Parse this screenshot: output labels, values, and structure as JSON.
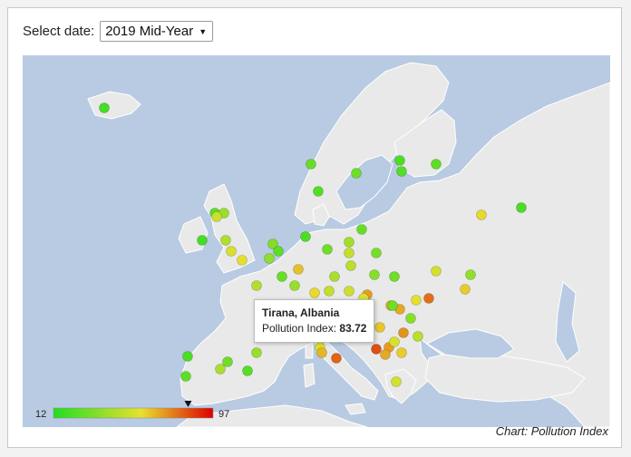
{
  "controls": {
    "date_label": "Select date:",
    "date_value": "2019 Mid-Year"
  },
  "tooltip": {
    "city": "Tirana, Albania",
    "metric_label": "Pollution Index:",
    "value": "83.72"
  },
  "legend": {
    "min_label": "12",
    "max_label": "97",
    "min": 12,
    "max": 97,
    "marker_value": 83.72
  },
  "caption": "Chart: Pollution Index",
  "colors": {
    "sea": "#b8cbe2",
    "land": "#e9e9e9",
    "low": "#22dd22",
    "mid": "#e8e030",
    "high": "#dd0000",
    "border": "#ffffff"
  },
  "map_data": {
    "region": "Europe",
    "cities": [
      {
        "v": 20
      },
      {
        "v": 28
      },
      {
        "v": 30
      },
      {
        "v": 22
      },
      {
        "v": 24
      },
      {
        "v": 26
      },
      {
        "v": 21
      },
      {
        "v": 60
      },
      {
        "v": 23
      },
      {
        "v": 25
      },
      {
        "v": 40
      },
      {
        "v": 52
      },
      {
        "v": 20
      },
      {
        "v": 45
      },
      {
        "v": 55
      },
      {
        "v": 58
      },
      {
        "v": 35
      },
      {
        "v": 26
      },
      {
        "v": 38
      },
      {
        "v": 22
      },
      {
        "v": 30
      },
      {
        "v": 42
      },
      {
        "v": 28
      },
      {
        "v": 32
      },
      {
        "v": 50
      },
      {
        "v": 48
      },
      {
        "v": 36
      },
      {
        "v": 30
      },
      {
        "v": 54
      },
      {
        "v": 38
      },
      {
        "v": 62
      },
      {
        "v": 46
      },
      {
        "v": 28
      },
      {
        "v": 64
      },
      {
        "v": 40
      },
      {
        "v": 60
      },
      {
        "v": 50
      },
      {
        "v": 44
      },
      {
        "v": 52
      },
      {
        "v": 70
      },
      {
        "v": 56
      },
      {
        "v": 66
      },
      {
        "v": 68
      },
      {
        "v": 74
      },
      {
        "v": 83.72
      },
      {
        "v": 70
      },
      {
        "v": 63
      },
      {
        "v": 55
      },
      {
        "v": 72
      },
      {
        "v": 48
      },
      {
        "v": 30
      },
      {
        "v": 36
      },
      {
        "v": 58
      },
      {
        "v": 78
      },
      {
        "v": 68
      },
      {
        "v": 62
      },
      {
        "v": 54
      },
      {
        "v": 40
      },
      {
        "v": 30
      },
      {
        "v": 22
      },
      {
        "v": 26
      },
      {
        "v": 44
      },
      {
        "v": 24
      },
      {
        "v": 56
      },
      {
        "v": 80
      },
      {
        "v": 66
      },
      {
        "v": 50
      },
      {
        "v": 38
      },
      {
        "v": 55
      }
    ]
  }
}
